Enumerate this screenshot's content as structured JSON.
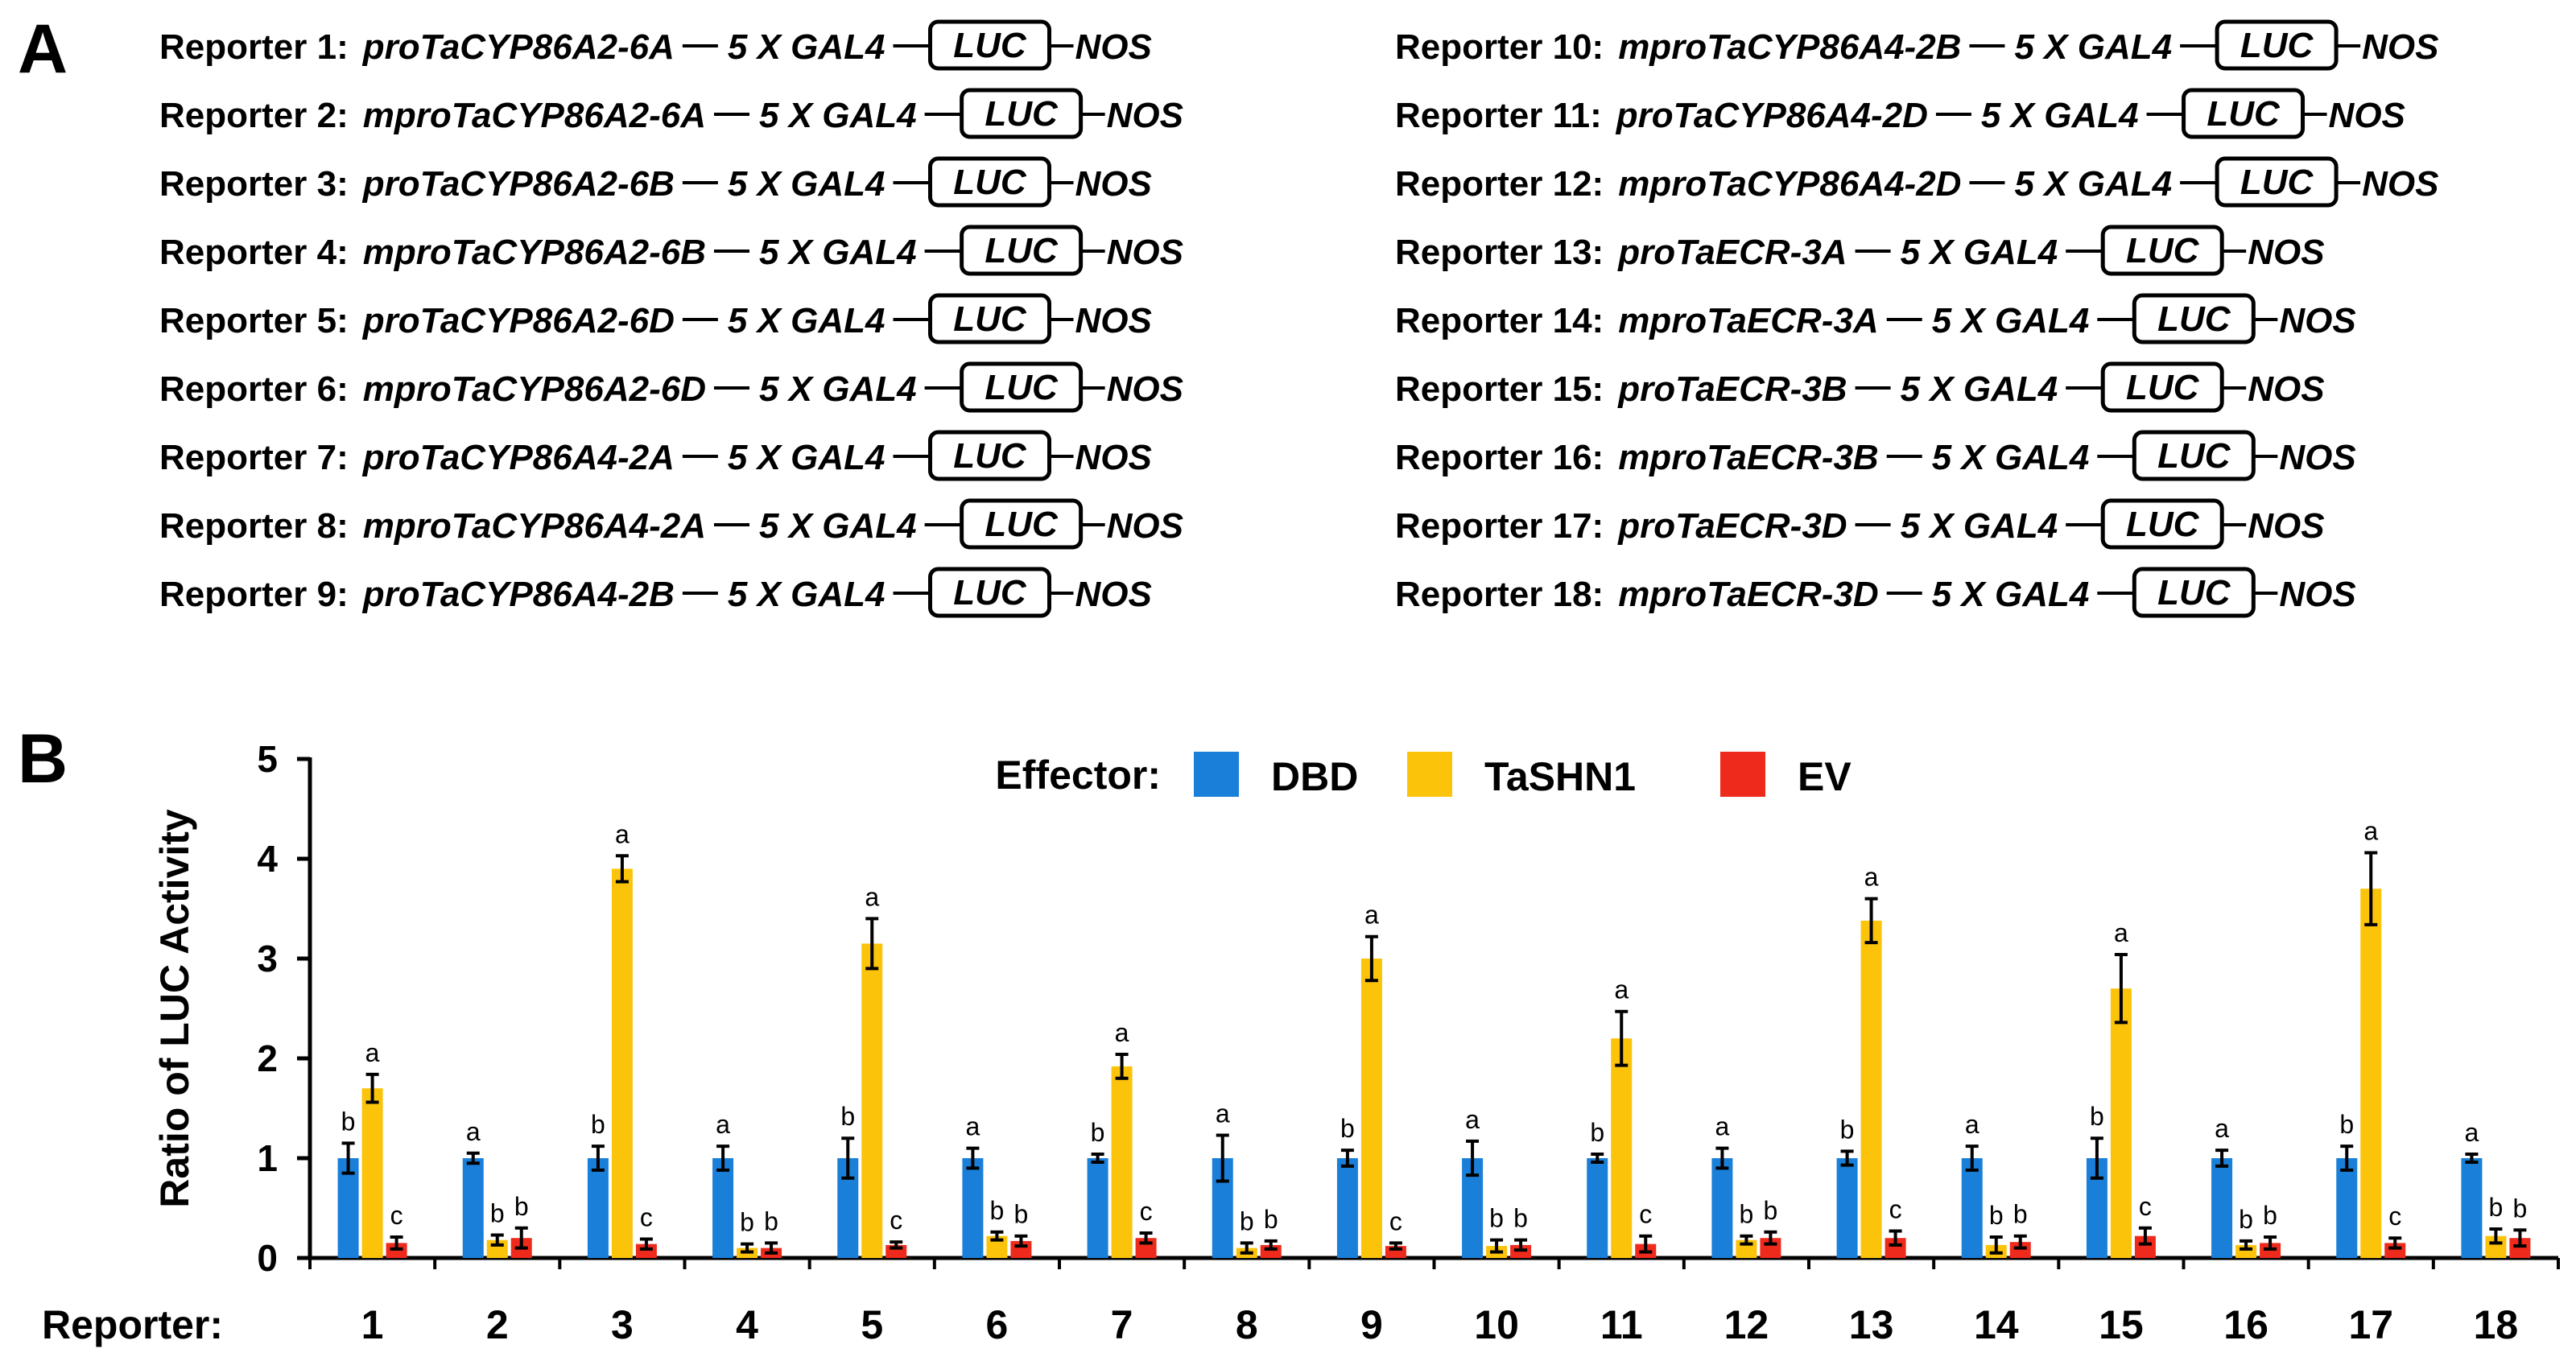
{
  "panel_a": {
    "label": "A",
    "element_gal4": "5 X GAL4",
    "element_luc": "LUC",
    "element_nos": "NOS",
    "reporters": [
      {
        "label": "Reporter 1:",
        "promoter": "proTaCYP86A2-6A"
      },
      {
        "label": "Reporter 2:",
        "promoter": "mproTaCYP86A2-6A"
      },
      {
        "label": "Reporter 3:",
        "promoter": "proTaCYP86A2-6B"
      },
      {
        "label": "Reporter 4:",
        "promoter": "mproTaCYP86A2-6B"
      },
      {
        "label": "Reporter 5:",
        "promoter": "proTaCYP86A2-6D"
      },
      {
        "label": "Reporter 6:",
        "promoter": "mproTaCYP86A2-6D"
      },
      {
        "label": "Reporter 7:",
        "promoter": "proTaCYP86A4-2A"
      },
      {
        "label": "Reporter 8:",
        "promoter": "mproTaCYP86A4-2A"
      },
      {
        "label": "Reporter 9:",
        "promoter": "proTaCYP86A4-2B"
      },
      {
        "label": "Reporter 10:",
        "promoter": "mproTaCYP86A4-2B"
      },
      {
        "label": "Reporter 11:",
        "promoter": "proTaCYP86A4-2D"
      },
      {
        "label": "Reporter 12:",
        "promoter": "mproTaCYP86A4-2D"
      },
      {
        "label": "Reporter 13:",
        "promoter": "proTaECR-3A"
      },
      {
        "label": "Reporter 14:",
        "promoter": "mproTaECR-3A"
      },
      {
        "label": "Reporter 15:",
        "promoter": "proTaECR-3B"
      },
      {
        "label": "Reporter 16:",
        "promoter": "mproTaECR-3B"
      },
      {
        "label": "Reporter 17:",
        "promoter": "proTaECR-3D"
      },
      {
        "label": "Reporter 18:",
        "promoter": "mproTaECR-3D"
      }
    ]
  },
  "chart_data": {
    "type": "bar",
    "panel_label": "B",
    "title": "",
    "xlabel": "Reporter:",
    "ylabel": "Ratio of LUC Activity",
    "ylim": [
      0,
      5
    ],
    "yticks": [
      0,
      1,
      2,
      3,
      4,
      5
    ],
    "grid": false,
    "legend_title": "Effector:",
    "legend_position": "top-center",
    "categories": [
      "1",
      "2",
      "3",
      "4",
      "5",
      "6",
      "7",
      "8",
      "9",
      "10",
      "11",
      "12",
      "13",
      "14",
      "15",
      "16",
      "17",
      "18"
    ],
    "series": [
      {
        "name": "DBD",
        "color": "#1a7fd8",
        "values": [
          1.0,
          1.0,
          1.0,
          1.0,
          1.0,
          1.0,
          1.0,
          1.0,
          1.0,
          1.0,
          1.0,
          1.0,
          1.0,
          1.0,
          1.0,
          1.0,
          1.0,
          1.0
        ],
        "errors": [
          0.15,
          0.05,
          0.12,
          0.12,
          0.2,
          0.1,
          0.04,
          0.23,
          0.08,
          0.17,
          0.04,
          0.1,
          0.07,
          0.12,
          0.2,
          0.08,
          0.12,
          0.04
        ],
        "letters": [
          "b",
          "a",
          "b",
          "a",
          "b",
          "a",
          "b",
          "a",
          "b",
          "a",
          "b",
          "a",
          "b",
          "a",
          "b",
          "a",
          "b",
          "a"
        ]
      },
      {
        "name": "TaSHN1",
        "color": "#fcc30b",
        "values": [
          1.7,
          0.18,
          3.9,
          0.1,
          3.15,
          0.22,
          1.92,
          0.1,
          3.0,
          0.12,
          2.2,
          0.18,
          3.38,
          0.13,
          2.7,
          0.13,
          3.7,
          0.22
        ],
        "errors": [
          0.14,
          0.05,
          0.13,
          0.04,
          0.25,
          0.04,
          0.12,
          0.05,
          0.22,
          0.06,
          0.27,
          0.04,
          0.22,
          0.08,
          0.34,
          0.04,
          0.36,
          0.07
        ],
        "letters": [
          "a",
          "b",
          "a",
          "b",
          "a",
          "b",
          "a",
          "b",
          "a",
          "b",
          "a",
          "b",
          "a",
          "b",
          "a",
          "b",
          "a",
          "b"
        ]
      },
      {
        "name": "EV",
        "color": "#ee2a1c",
        "values": [
          0.15,
          0.2,
          0.14,
          0.1,
          0.13,
          0.17,
          0.2,
          0.13,
          0.12,
          0.13,
          0.14,
          0.2,
          0.2,
          0.16,
          0.22,
          0.15,
          0.15,
          0.2
        ],
        "errors": [
          0.06,
          0.1,
          0.05,
          0.05,
          0.03,
          0.05,
          0.05,
          0.04,
          0.03,
          0.05,
          0.08,
          0.06,
          0.07,
          0.06,
          0.08,
          0.06,
          0.05,
          0.08
        ],
        "letters": [
          "c",
          "b",
          "c",
          "b",
          "c",
          "b",
          "c",
          "b",
          "c",
          "b",
          "c",
          "b",
          "c",
          "b",
          "c",
          "b",
          "c",
          "b"
        ]
      }
    ]
  }
}
